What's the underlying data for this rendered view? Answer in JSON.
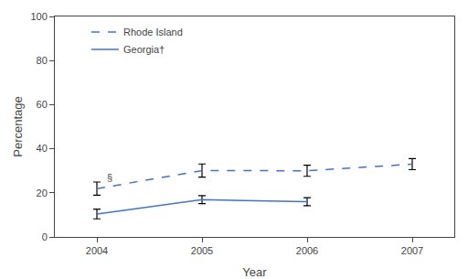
{
  "chart_data": {
    "type": "line",
    "x": [
      2004,
      2005,
      2006,
      2007
    ],
    "series": [
      {
        "name": "Rhode Island",
        "color": "#4472C4",
        "line_style": "dashed",
        "values": [
          21.9,
          30.1,
          30.0,
          33.0
        ],
        "error_lower": [
          3.0,
          3.0,
          2.5,
          2.5
        ],
        "error_upper": [
          3.0,
          3.0,
          2.5,
          2.5
        ]
      },
      {
        "name": "Georgia†",
        "color": "#4472C4",
        "line_style": "solid",
        "values": [
          10.4,
          16.9,
          16.0,
          null
        ],
        "error_lower": [
          2.2,
          1.8,
          1.8,
          null
        ],
        "error_upper": [
          2.2,
          1.8,
          1.8,
          null
        ]
      }
    ],
    "annotations": [
      {
        "text": "§",
        "x": 2004.08,
        "y": 23.5
      }
    ],
    "xlabel": "Year",
    "ylabel": "Percentage",
    "xlim": [
      2003.6,
      2007.4
    ],
    "xticks": [
      2004,
      2005,
      2006,
      2007
    ],
    "ylim": [
      0,
      100
    ],
    "yticks": [
      0,
      20,
      40,
      60,
      80,
      100
    ],
    "legend": "upper left",
    "grid": false
  }
}
